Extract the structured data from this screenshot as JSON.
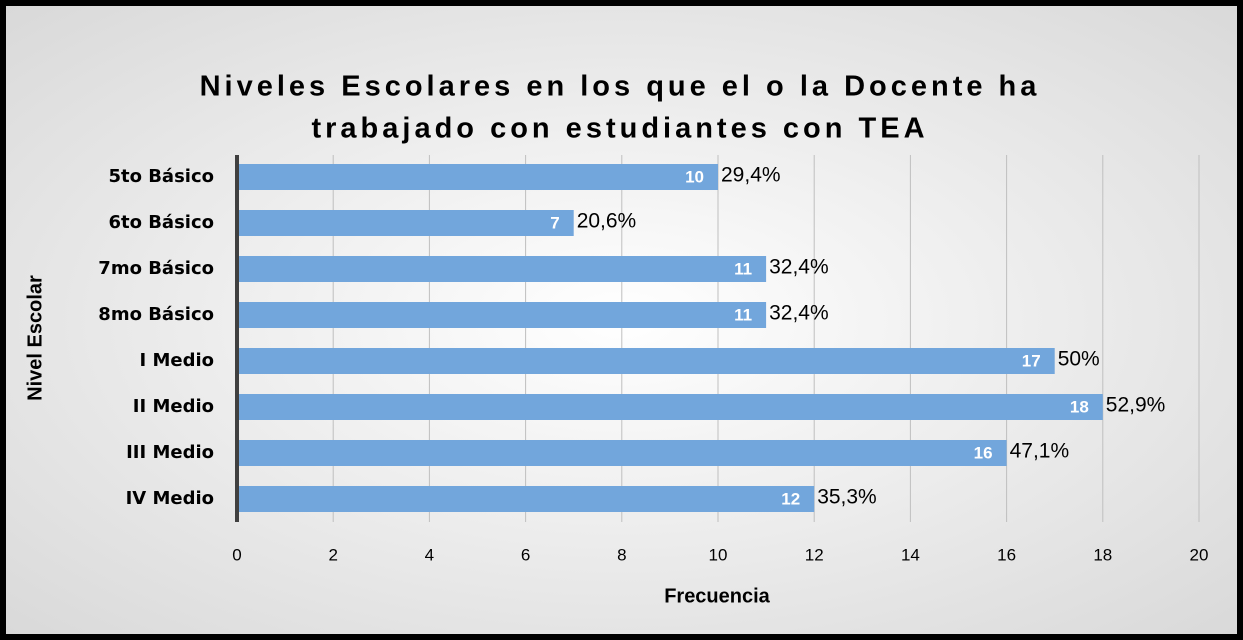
{
  "chart_data": {
    "type": "barh",
    "title_lines": [
      "Niveles Escolares en los que el o la Docente ha",
      "trabajado con estudiantes con TEA"
    ],
    "categories": [
      "5to Básico",
      "6to Básico",
      "7mo Básico",
      "8mo Básico",
      "I Medio",
      "II Medio",
      "III Medio",
      "IV Medio"
    ],
    "values": [
      10,
      7,
      11,
      11,
      17,
      18,
      16,
      12
    ],
    "percent_labels": [
      "29,4%",
      "20,6%",
      "32,4%",
      "32,4%",
      "50%",
      "52,9%",
      "47,1%",
      "35,3%"
    ],
    "color": "#72a6dc",
    "xlim": [
      0,
      20
    ],
    "xticks": [
      0,
      2,
      4,
      6,
      8,
      10,
      12,
      14,
      16,
      18,
      20
    ],
    "xlabel": "Frecuencia",
    "ylabel": "Nivel Escolar",
    "grid": true
  }
}
